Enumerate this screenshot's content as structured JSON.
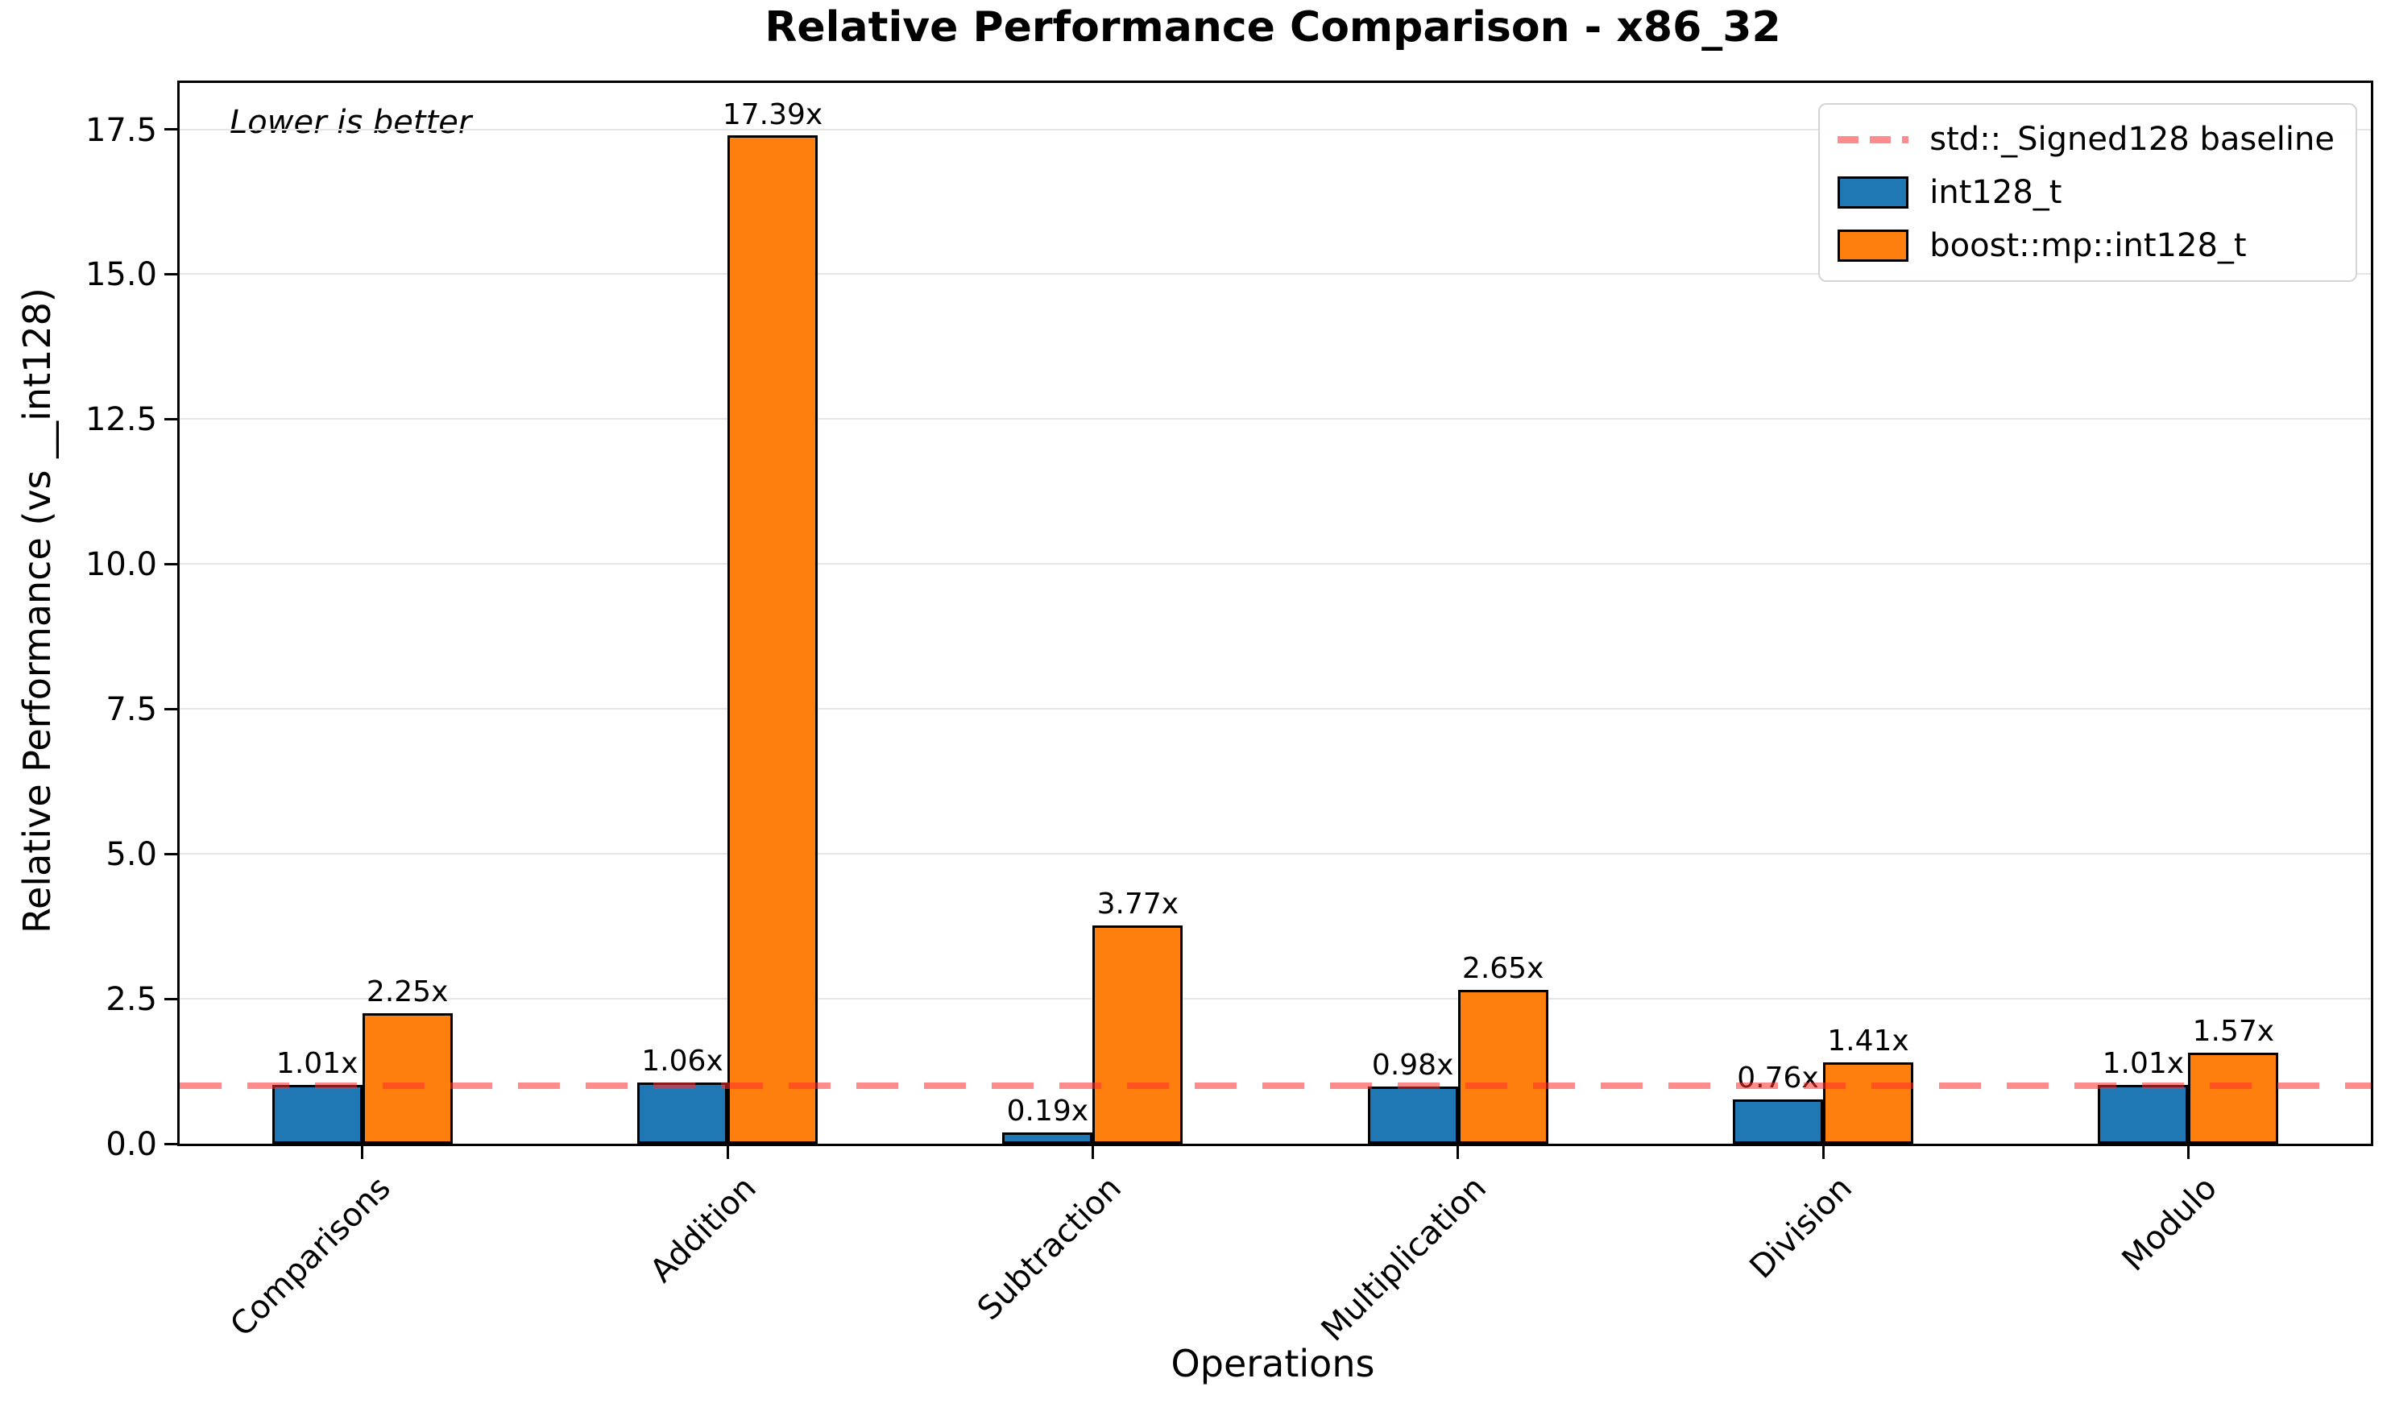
{
  "title": "Relative Performance Comparison - x86_32",
  "annotation": "Lower is better",
  "axes": {
    "xlabel": "Operations",
    "ylabel": "Relative Performance (vs __int128)"
  },
  "legend": {
    "baseline": "std::_Signed128 baseline",
    "series1": "int128_t",
    "series2": "boost::mp::int128_t"
  },
  "chart_data": {
    "type": "bar",
    "title": "Relative Performance Comparison - x86_32",
    "xlabel": "Operations",
    "ylabel": "Relative Performance (vs __int128)",
    "annotation": "Lower is better",
    "categories": [
      "Comparisons",
      "Addition",
      "Subtraction",
      "Multiplication",
      "Division",
      "Modulo"
    ],
    "series": [
      {
        "name": "int128_t",
        "color": "#1f77b4",
        "edgecolor": "#000000",
        "values": [
          1.01,
          1.06,
          0.19,
          0.98,
          0.76,
          1.01
        ],
        "labels": [
          "1.01x",
          "1.06x",
          "0.19x",
          "0.98x",
          "0.76x",
          "1.01x"
        ]
      },
      {
        "name": "boost::mp::int128_t",
        "color": "#ff7f0e",
        "edgecolor": "#000000",
        "values": [
          2.25,
          17.39,
          3.77,
          2.65,
          1.41,
          1.57
        ],
        "labels": [
          "2.25x",
          "17.39x",
          "3.77x",
          "2.65x",
          "1.41x",
          "1.57x"
        ]
      }
    ],
    "baseline": {
      "value": 1.0,
      "label": "std::_Signed128 baseline",
      "color": "rgba(255,45,45,0.55)",
      "style": "dashed"
    },
    "yticks": [
      0.0,
      2.5,
      5.0,
      7.5,
      10.0,
      12.5,
      15.0,
      17.5
    ],
    "ylim": [
      0,
      18.3
    ],
    "grid": "horizontal-only",
    "gridcolor": "#e6e6e6",
    "legend_position": "upper-right"
  }
}
